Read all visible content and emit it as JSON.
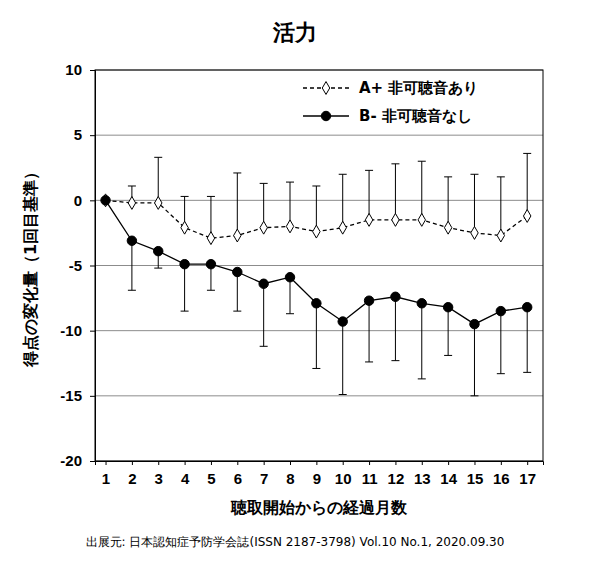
{
  "chart_data": {
    "type": "line",
    "title": "活力",
    "x_label": "聴取開始からの経過月数",
    "y_label": "得点の変化量（1回目基準）",
    "annotations": [
      "出展元: 日本認知症予防学会誌(ISSN 2187-3798) Vol.10 No.1, 2020.09.30"
    ],
    "x": [
      1,
      2,
      3,
      4,
      5,
      6,
      7,
      8,
      9,
      10,
      11,
      12,
      13,
      14,
      15,
      16,
      17
    ],
    "xlim": [
      0.6,
      17.6
    ],
    "xticks": [
      1,
      2,
      3,
      4,
      5,
      6,
      7,
      8,
      9,
      10,
      11,
      12,
      13,
      14,
      15,
      16,
      17
    ],
    "ylim": [
      -20,
      10
    ],
    "yticks": [
      -20,
      -15,
      -10,
      -5,
      0,
      5,
      10
    ],
    "grid": true,
    "legend": "top-right",
    "series": [
      {
        "name": "A+ 非可聴音あり",
        "color": "#000000",
        "marker": "diamond",
        "line_style": "dashed",
        "values": [
          0,
          -0.2,
          -0.2,
          -2.1,
          -2.9,
          -2.7,
          -2.1,
          -2.0,
          -2.4,
          -2.1,
          -1.5,
          -1.5,
          -1.5,
          -2.1,
          -2.5,
          -2.7,
          -1.2
        ],
        "error_upper": [
          null,
          1.3,
          3.5,
          2.4,
          3.2,
          4.8,
          3.4,
          3.4,
          3.5,
          4.1,
          3.8,
          4.3,
          4.5,
          3.9,
          4.5,
          4.5,
          4.8
        ]
      },
      {
        "name": "B- 非可聴音なし",
        "color": "#000000",
        "marker": "circle",
        "line_style": "solid",
        "values": [
          0,
          -3.1,
          -3.9,
          -4.9,
          -4.9,
          -5.5,
          -6.4,
          -5.9,
          -7.9,
          -9.3,
          -7.7,
          -7.4,
          -7.9,
          -8.2,
          -9.5,
          -8.5,
          -8.2
        ],
        "error_lower": [
          null,
          3.8,
          1.3,
          3.6,
          2.0,
          3.0,
          4.8,
          2.8,
          5.0,
          5.6,
          4.7,
          4.9,
          5.8,
          3.7,
          5.5,
          4.8,
          5.0
        ]
      }
    ]
  }
}
